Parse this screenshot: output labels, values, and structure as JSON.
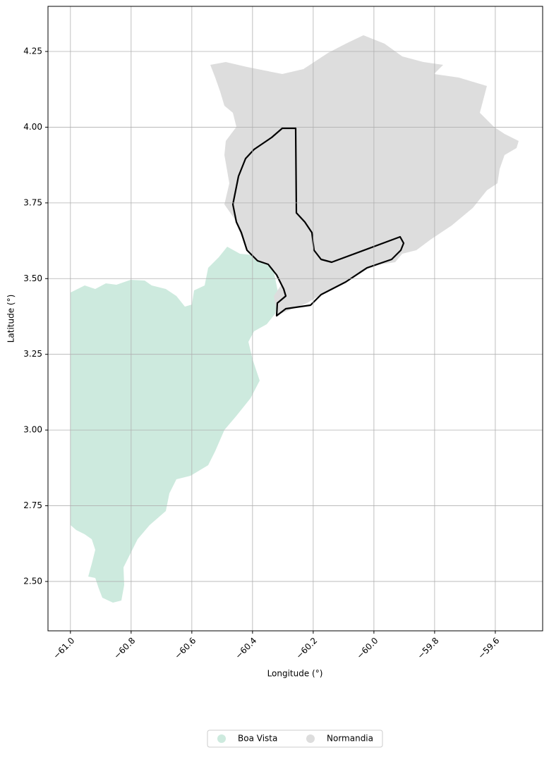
{
  "chart_data": {
    "type": "map",
    "x_label": "Longitude (°)",
    "y_label": "Latitude (°)",
    "xlim": [
      -61.074,
      -59.444
    ],
    "ylim": [
      2.337,
      4.399
    ],
    "xticks": [
      {
        "value": -61.0,
        "label": "−61.0"
      },
      {
        "value": -60.8,
        "label": "−60.8"
      },
      {
        "value": -60.6,
        "label": "−60.6"
      },
      {
        "value": -60.4,
        "label": "−60.4"
      },
      {
        "value": -60.2,
        "label": "−60.2"
      },
      {
        "value": -60.0,
        "label": "−60.0"
      },
      {
        "value": -59.8,
        "label": "−59.8"
      },
      {
        "value": -59.6,
        "label": "−59.6"
      }
    ],
    "yticks": [
      {
        "value": 2.5,
        "label": "2.50"
      },
      2.75,
      {
        "value": 3.0,
        "label": "3.00"
      },
      3.25,
      {
        "value": 3.5,
        "label": "3.50"
      },
      3.75,
      {
        "value": 4.0,
        "label": "4.00"
      },
      4.25
    ],
    "grid": true,
    "legend": [
      {
        "name": "Boa Vista",
        "color": "#cdeade"
      },
      {
        "name": "Normandia",
        "color": "#dddddd"
      }
    ]
  }
}
